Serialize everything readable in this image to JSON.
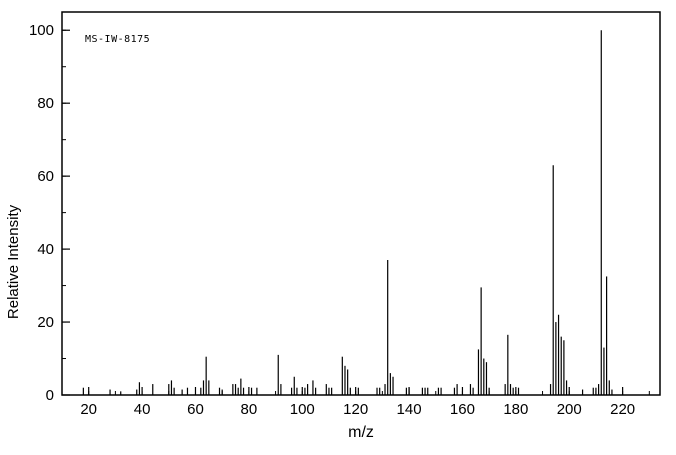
{
  "chart_data": {
    "type": "bar",
    "subtype": "mass-spectrum-stick-plot",
    "title": "MS-IW-8175",
    "xlabel": "m/z",
    "ylabel": "Relative Intensity",
    "xlim": [
      10,
      234
    ],
    "ylim": [
      0,
      105
    ],
    "x_ticks_major": [
      20,
      40,
      60,
      80,
      100,
      120,
      140,
      160,
      180,
      200,
      220
    ],
    "x_minor_step": 10,
    "y_ticks_major": [
      0,
      20,
      40,
      60,
      80,
      100
    ],
    "y_minor_step": 10,
    "grid": false,
    "legend": "none",
    "line_color": "#000000",
    "background_color": "#ffffff",
    "peaks": [
      [
        18,
        2
      ],
      [
        28,
        1.5
      ],
      [
        32,
        1
      ],
      [
        38,
        1.5
      ],
      [
        39,
        3.5
      ],
      [
        44,
        3
      ],
      [
        50,
        3
      ],
      [
        51,
        4
      ],
      [
        52,
        2
      ],
      [
        55,
        1.5
      ],
      [
        57,
        2
      ],
      [
        62,
        2
      ],
      [
        63,
        4
      ],
      [
        64,
        10.5
      ],
      [
        65,
        4
      ],
      [
        69,
        2
      ],
      [
        70,
        1.5
      ],
      [
        74,
        3
      ],
      [
        75,
        3
      ],
      [
        76,
        2
      ],
      [
        77,
        4.5
      ],
      [
        78,
        2
      ],
      [
        81,
        2
      ],
      [
        83,
        2
      ],
      [
        91,
        11
      ],
      [
        92,
        3
      ],
      [
        96,
        2
      ],
      [
        97,
        5
      ],
      [
        98,
        2
      ],
      [
        101,
        2
      ],
      [
        102,
        3
      ],
      [
        104,
        4
      ],
      [
        105,
        2
      ],
      [
        109,
        3
      ],
      [
        110,
        2
      ],
      [
        111,
        2
      ],
      [
        115,
        10.5
      ],
      [
        116,
        8
      ],
      [
        117,
        7
      ],
      [
        118,
        2
      ],
      [
        121,
        2
      ],
      [
        128,
        2
      ],
      [
        129,
        2
      ],
      [
        131,
        3
      ],
      [
        132,
        37
      ],
      [
        133,
        6
      ],
      [
        134,
        5
      ],
      [
        139,
        2
      ],
      [
        140,
        2
      ],
      [
        145,
        2
      ],
      [
        146,
        2
      ],
      [
        147,
        2
      ],
      [
        151,
        2
      ],
      [
        152,
        2
      ],
      [
        157,
        2
      ],
      [
        158,
        3
      ],
      [
        163,
        3
      ],
      [
        164,
        2
      ],
      [
        166,
        12.5
      ],
      [
        167,
        29.5
      ],
      [
        168,
        10
      ],
      [
        169,
        9
      ],
      [
        170,
        2
      ],
      [
        176,
        3
      ],
      [
        177,
        16.5
      ],
      [
        178,
        3
      ],
      [
        179,
        2
      ],
      [
        181,
        2
      ],
      [
        193,
        3
      ],
      [
        194,
        63
      ],
      [
        195,
        20
      ],
      [
        196,
        22
      ],
      [
        197,
        16
      ],
      [
        198,
        15
      ],
      [
        199,
        4
      ],
      [
        205,
        1.5
      ],
      [
        209,
        2
      ],
      [
        210,
        2
      ],
      [
        211,
        3
      ],
      [
        212,
        100
      ],
      [
        213,
        13
      ],
      [
        214,
        32.5
      ],
      [
        215,
        4
      ],
      [
        216,
        1.5
      ]
    ]
  }
}
